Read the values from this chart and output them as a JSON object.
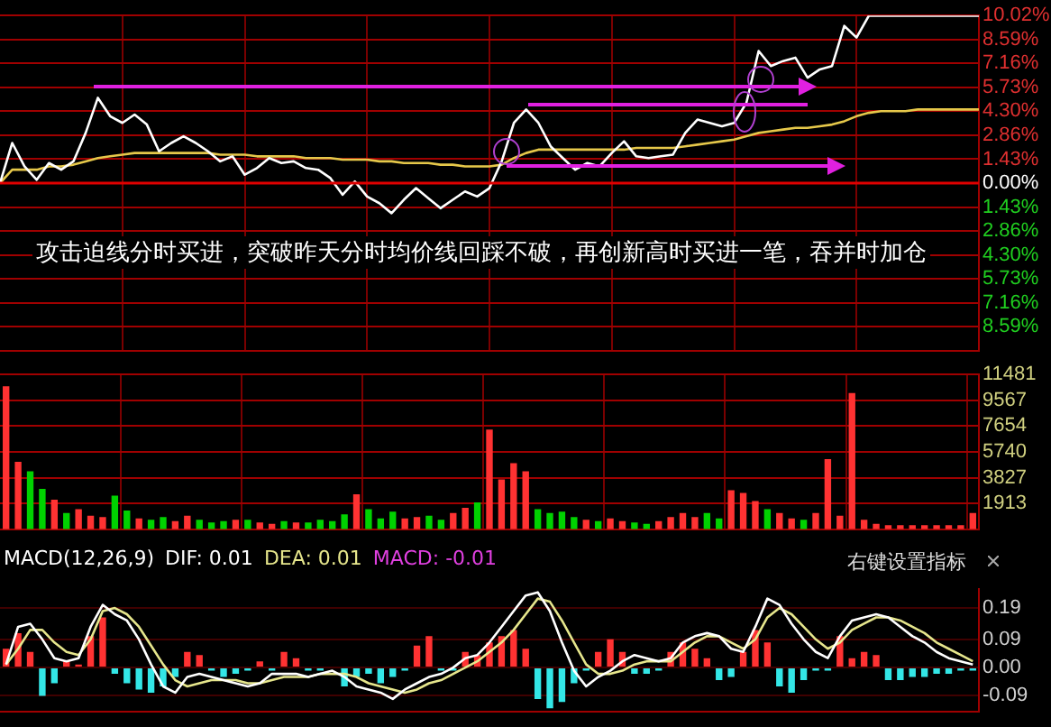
{
  "chart_data": [
    {
      "type": "line",
      "categories": [
        null,
        null,
        null,
        null,
        null,
        null,
        null,
        null,
        null,
        null,
        null,
        null,
        null,
        null,
        null,
        null,
        null,
        null,
        null,
        null,
        null,
        null,
        null,
        null,
        null,
        null,
        null,
        null,
        null,
        null,
        null,
        null,
        null,
        null,
        null,
        null,
        null,
        null,
        null,
        null,
        null,
        null,
        null,
        null,
        null,
        null,
        null,
        null,
        null,
        null,
        null,
        null,
        null,
        null,
        null,
        null,
        null,
        null,
        null,
        null,
        null,
        null,
        null,
        null,
        null,
        null,
        null,
        null,
        null,
        null,
        null,
        null,
        null,
        null,
        null,
        null,
        null,
        null,
        null,
        null,
        null
      ],
      "series": [
        {
          "color": "#ffffff",
          "values": [
            0.0,
            2.4,
            1.0,
            0.2,
            1.2,
            0.8,
            1.3,
            3.0,
            5.1,
            4.0,
            3.6,
            4.1,
            3.5,
            1.9,
            2.4,
            2.8,
            2.4,
            1.9,
            1.3,
            1.6,
            0.5,
            0.9,
            1.5,
            1.2,
            1.3,
            0.9,
            0.8,
            0.3,
            -0.7,
            0.1,
            -0.8,
            -1.2,
            -1.8,
            -1.0,
            -0.3,
            -0.9,
            -1.5,
            -1.0,
            -0.5,
            -0.8,
            -0.3,
            1.3,
            3.6,
            4.4,
            3.6,
            2.2,
            1.5,
            0.8,
            1.2,
            1.0,
            1.8,
            2.5,
            1.6,
            1.5,
            1.6,
            1.7,
            3.0,
            3.8,
            3.6,
            3.4,
            3.6,
            4.8,
            7.9,
            7.0,
            7.3,
            7.5,
            6.3,
            6.8,
            7.0,
            9.4,
            8.7,
            10.0,
            10.0,
            10.0,
            10.0,
            10.0,
            10.0,
            10.0,
            10.0,
            10.0,
            10.0
          ]
        },
        {
          "color": "#e6c84a",
          "values": [
            0.0,
            0.8,
            0.8,
            0.8,
            1.0,
            1.0,
            1.1,
            1.3,
            1.5,
            1.6,
            1.7,
            1.8,
            1.8,
            1.8,
            1.8,
            1.8,
            1.8,
            1.8,
            1.7,
            1.7,
            1.7,
            1.6,
            1.6,
            1.6,
            1.6,
            1.5,
            1.5,
            1.5,
            1.4,
            1.4,
            1.4,
            1.3,
            1.3,
            1.2,
            1.2,
            1.2,
            1.1,
            1.1,
            1.0,
            1.0,
            1.0,
            1.1,
            1.5,
            1.8,
            2.0,
            2.0,
            2.0,
            2.0,
            2.0,
            2.0,
            2.0,
            2.0,
            2.1,
            2.1,
            2.1,
            2.1,
            2.2,
            2.3,
            2.4,
            2.5,
            2.6,
            2.8,
            3.0,
            3.1,
            3.2,
            3.3,
            3.3,
            3.4,
            3.5,
            3.7,
            4.0,
            4.2,
            4.3,
            4.3,
            4.3,
            4.4,
            4.4,
            4.4,
            4.4,
            4.4,
            4.4
          ]
        }
      ],
      "ylim": [
        -10.02,
        10.02
      ],
      "yticks": [
        {
          "value": -8.59,
          "label": "8.59%"
        },
        {
          "value": -7.16,
          "label": "7.16%"
        },
        {
          "value": -5.73,
          "label": "5.73%"
        },
        {
          "value": -4.3,
          "label": "4.30%"
        },
        {
          "value": -2.86,
          "label": "2.86%"
        },
        {
          "value": -1.43,
          "label": "1.43%"
        },
        {
          "value": 0,
          "label": "0.00%"
        },
        {
          "value": 1.43,
          "label": "1.43%"
        },
        {
          "value": 2.86,
          "label": "2.86%"
        },
        {
          "value": 4.3,
          "label": "4.30%"
        },
        {
          "value": 5.73,
          "label": "5.73%"
        },
        {
          "value": 7.16,
          "label": "7.16%"
        },
        {
          "value": 8.59,
          "label": "8.59%"
        },
        {
          "value": 10.02,
          "label": "10.02%"
        }
      ],
      "tick_labels": "y",
      "grid": true,
      "ref_lines": [
        {
          "axis": "y",
          "value": 0,
          "color": "#e00000"
        }
      ],
      "annotations": [
        "攻击迫线分时买进，突破昨天分时均价线回踩不破，再创新高时买进一笔，吞并时加仓"
      ]
    },
    {
      "type": "bar",
      "categories": [
        null,
        null,
        null,
        null,
        null,
        null,
        null,
        null,
        null,
        null,
        null,
        null,
        null,
        null,
        null,
        null,
        null,
        null,
        null,
        null,
        null,
        null,
        null,
        null,
        null,
        null,
        null,
        null,
        null,
        null,
        null,
        null,
        null,
        null,
        null,
        null,
        null,
        null,
        null,
        null,
        null,
        null,
        null,
        null,
        null,
        null,
        null,
        null,
        null,
        null,
        null,
        null,
        null,
        null,
        null,
        null,
        null,
        null,
        null,
        null,
        null,
        null,
        null,
        null,
        null,
        null,
        null,
        null,
        null,
        null,
        null,
        null,
        null,
        null,
        null,
        null,
        null,
        null,
        null,
        null,
        null
      ],
      "values": [
        10600,
        5000,
        4300,
        3000,
        2200,
        1200,
        1500,
        1000,
        900,
        2500,
        1400,
        800,
        700,
        900,
        600,
        1000,
        700,
        500,
        600,
        700,
        700,
        500,
        400,
        600,
        500,
        500,
        700,
        600,
        1100,
        2600,
        1500,
        800,
        1300,
        800,
        900,
        1000,
        700,
        1200,
        1600,
        2000,
        7400,
        3700,
        4900,
        4300,
        1500,
        1200,
        1300,
        900,
        700,
        600,
        800,
        600,
        500,
        400,
        600,
        900,
        1200,
        900,
        1200,
        800,
        2900,
        2700,
        2100,
        1500,
        1200,
        800,
        700,
        1200,
        5200,
        1000,
        10100,
        700,
        400,
        300,
        300,
        300,
        300,
        300,
        300,
        300,
        1200
      ],
      "colors": [
        "#ff3232",
        "#ff3232",
        "#00d200",
        "#00d200",
        "#ff3232",
        "#00d200",
        "#ff3232",
        "#ff3232",
        "#ff3232",
        "#00d200",
        "#00d200",
        "#ff3232",
        "#00d200",
        "#00d200",
        "#ff3232",
        "#ff3232",
        "#00d200",
        "#00d200",
        "#00d200",
        "#ff3232",
        "#00d200",
        "#ff3232",
        "#ff3232",
        "#00d200",
        "#ff3232",
        "#00d200",
        "#00d200",
        "#00d200",
        "#00d200",
        "#ff3232",
        "#00d200",
        "#00d200",
        "#00d200",
        "#ff3232",
        "#ff3232",
        "#00d200",
        "#00d200",
        "#ff3232",
        "#ff3232",
        "#00d200",
        "#ff3232",
        "#ff3232",
        "#ff3232",
        "#ff3232",
        "#00d200",
        "#00d200",
        "#00d200",
        "#00d200",
        "#ff3232",
        "#00d200",
        "#ff3232",
        "#ff3232",
        "#00d200",
        "#00d200",
        "#ff3232",
        "#ff3232",
        "#ff3232",
        "#ff3232",
        "#00d200",
        "#00d200",
        "#ff3232",
        "#ff3232",
        "#ff3232",
        "#00d200",
        "#ff3232",
        "#ff3232",
        "#00d200",
        "#ff3232",
        "#ff3232",
        "#ff3232",
        "#ff3232",
        "#ff3232",
        "#ff3232",
        "#ff3232",
        "#ff3232",
        "#ff3232",
        "#ff3232",
        "#ff3232",
        "#ff3232",
        "#ff3232",
        "#ff3232"
      ],
      "ylim": [
        0,
        11481
      ],
      "yticks": [
        1913,
        3827,
        5740,
        7654,
        9567,
        11481
      ],
      "tick_labels": "y",
      "grid": true
    },
    {
      "type": "bar",
      "title": "MACD(12,26,9)",
      "categories": [
        null,
        null,
        null,
        null,
        null,
        null,
        null,
        null,
        null,
        null,
        null,
        null,
        null,
        null,
        null,
        null,
        null,
        null,
        null,
        null,
        null,
        null,
        null,
        null,
        null,
        null,
        null,
        null,
        null,
        null,
        null,
        null,
        null,
        null,
        null,
        null,
        null,
        null,
        null,
        null,
        null,
        null,
        null,
        null,
        null,
        null,
        null,
        null,
        null,
        null,
        null,
        null,
        null,
        null,
        null,
        null,
        null,
        null,
        null,
        null,
        null,
        null,
        null,
        null,
        null,
        null,
        null,
        null,
        null,
        null,
        null,
        null,
        null,
        null,
        null,
        null,
        null,
        null,
        null,
        null,
        null
      ],
      "series": [
        {
          "type": "bar",
          "values": [
            0.06,
            0.11,
            0.05,
            -0.09,
            -0.05,
            0.02,
            0.01,
            0.1,
            0.16,
            -0.02,
            -0.05,
            -0.07,
            -0.08,
            -0.06,
            -0.03,
            0.05,
            0.04,
            -0.01,
            -0.03,
            -0.02,
            -0.01,
            0.02,
            -0.01,
            0.05,
            0.03,
            -0.01,
            -0.01,
            0.0,
            -0.06,
            -0.03,
            -0.02,
            -0.05,
            -0.03,
            -0.01,
            0.07,
            0.1,
            -0.01,
            -0.01,
            0.05,
            0.04,
            0.08,
            0.1,
            0.12,
            0.06,
            -0.1,
            -0.13,
            -0.11,
            -0.05,
            -0.01,
            0.05,
            0.09,
            0.05,
            -0.02,
            -0.02,
            -0.01,
            0.05,
            0.08,
            0.06,
            0.03,
            -0.04,
            -0.03,
            0.05,
            0.12,
            0.08,
            -0.06,
            -0.08,
            -0.04,
            -0.01,
            -0.01,
            0.1,
            0.03,
            0.05,
            0.04,
            -0.04,
            -0.04,
            -0.03,
            -0.03,
            -0.02,
            -0.02,
            -0.01,
            -0.01
          ],
          "colors": [
            "#ff3232",
            "#ff3232",
            "#ff3232",
            "#33e6e6",
            "#33e6e6",
            "#ff3232",
            "#ff3232",
            "#ff3232",
            "#ff3232",
            "#33e6e6",
            "#33e6e6",
            "#33e6e6",
            "#33e6e6",
            "#33e6e6",
            "#33e6e6",
            "#ff3232",
            "#ff3232",
            "#33e6e6",
            "#33e6e6",
            "#33e6e6",
            "#33e6e6",
            "#ff3232",
            "#33e6e6",
            "#ff3232",
            "#ff3232",
            "#33e6e6",
            "#33e6e6",
            "#ff3232",
            "#33e6e6",
            "#33e6e6",
            "#33e6e6",
            "#33e6e6",
            "#33e6e6",
            "#33e6e6",
            "#ff3232",
            "#ff3232",
            "#33e6e6",
            "#33e6e6",
            "#ff3232",
            "#ff3232",
            "#ff3232",
            "#ff3232",
            "#ff3232",
            "#ff3232",
            "#33e6e6",
            "#33e6e6",
            "#33e6e6",
            "#33e6e6",
            "#33e6e6",
            "#ff3232",
            "#ff3232",
            "#ff3232",
            "#33e6e6",
            "#33e6e6",
            "#33e6e6",
            "#ff3232",
            "#ff3232",
            "#ff3232",
            "#ff3232",
            "#33e6e6",
            "#33e6e6",
            "#ff3232",
            "#ff3232",
            "#ff3232",
            "#33e6e6",
            "#33e6e6",
            "#33e6e6",
            "#33e6e6",
            "#33e6e6",
            "#ff3232",
            "#ff3232",
            "#ff3232",
            "#ff3232",
            "#33e6e6",
            "#33e6e6",
            "#33e6e6",
            "#33e6e6",
            "#33e6e6",
            "#33e6e6",
            "#33e6e6",
            "#33e6e6"
          ]
        },
        {
          "type": "line",
          "color": "#ffffff",
          "values": [
            0.01,
            0.13,
            0.14,
            0.09,
            0.03,
            0.02,
            0.03,
            0.13,
            0.2,
            0.17,
            0.15,
            0.09,
            0.01,
            -0.06,
            -0.08,
            -0.03,
            -0.02,
            -0.03,
            -0.04,
            -0.05,
            -0.06,
            -0.05,
            -0.02,
            -0.02,
            -0.02,
            -0.03,
            -0.02,
            -0.01,
            -0.03,
            -0.06,
            -0.07,
            -0.08,
            -0.1,
            -0.07,
            -0.05,
            -0.03,
            -0.02,
            0.0,
            0.03,
            0.04,
            0.08,
            0.13,
            0.18,
            0.23,
            0.24,
            0.18,
            0.08,
            -0.01,
            -0.06,
            -0.03,
            -0.01,
            0.02,
            0.04,
            0.03,
            0.02,
            0.03,
            0.08,
            0.1,
            0.11,
            0.1,
            0.06,
            0.05,
            0.13,
            0.22,
            0.2,
            0.14,
            0.09,
            0.05,
            0.03,
            0.1,
            0.15,
            0.16,
            0.17,
            0.16,
            0.13,
            0.1,
            0.08,
            0.05,
            0.03,
            0.02,
            0.01
          ]
        },
        {
          "type": "line",
          "color": "#e6e68c",
          "values": [
            0.01,
            0.06,
            0.12,
            0.12,
            0.08,
            0.05,
            0.04,
            0.09,
            0.18,
            0.19,
            0.17,
            0.13,
            0.07,
            0.01,
            -0.04,
            -0.06,
            -0.05,
            -0.04,
            -0.04,
            -0.04,
            -0.05,
            -0.05,
            -0.04,
            -0.03,
            -0.03,
            -0.03,
            -0.02,
            -0.02,
            -0.02,
            -0.03,
            -0.05,
            -0.06,
            -0.07,
            -0.08,
            -0.07,
            -0.05,
            -0.04,
            -0.02,
            0.0,
            0.02,
            0.05,
            0.08,
            0.12,
            0.17,
            0.22,
            0.21,
            0.15,
            0.08,
            0.01,
            -0.02,
            -0.02,
            -0.01,
            0.01,
            0.02,
            0.02,
            0.02,
            0.05,
            0.08,
            0.1,
            0.1,
            0.08,
            0.06,
            0.09,
            0.16,
            0.19,
            0.17,
            0.13,
            0.09,
            0.06,
            0.08,
            0.12,
            0.14,
            0.16,
            0.16,
            0.15,
            0.13,
            0.11,
            0.08,
            0.06,
            0.04,
            0.02
          ]
        }
      ],
      "ylim": [
        -0.14,
        0.25
      ],
      "yticks": [
        -0.09,
        {
          "value": 0,
          "label": "0.00"
        },
        0.09,
        0.19
      ],
      "tick_labels": "y",
      "grid": "y",
      "annotations": [
        "DIF: 0.01",
        "DEA: 0.01",
        "MACD: -0.01",
        "右键设置指标"
      ]
    }
  ]
}
